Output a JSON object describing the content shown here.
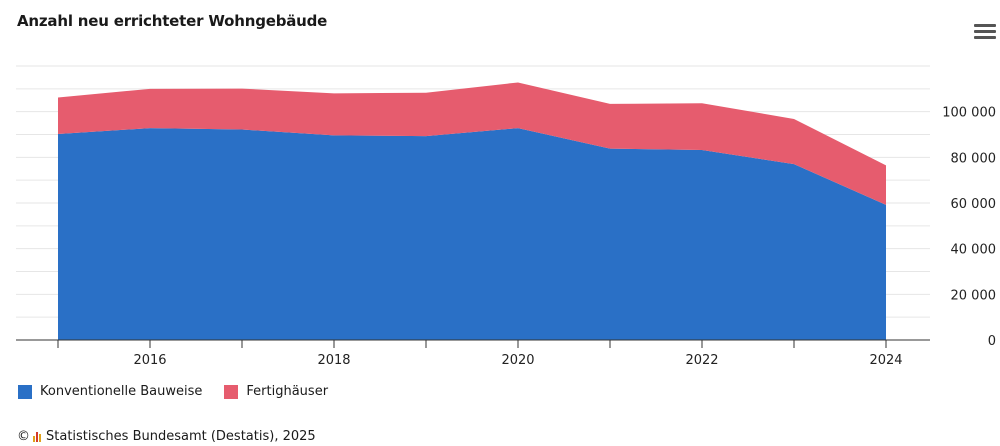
{
  "chart_data": {
    "type": "area",
    "stacked": true,
    "title": "Anzahl neu errichteter Wohngebäude",
    "x": [
      2015,
      2016,
      2017,
      2018,
      2019,
      2020,
      2021,
      2022,
      2023,
      2024
    ],
    "x_tick_labels": [
      "2016",
      "2018",
      "2020",
      "2022",
      "2024"
    ],
    "x_tick_values": [
      2016,
      2018,
      2020,
      2022,
      2024
    ],
    "y_tick_labels": [
      "0",
      "20 000",
      "40 000",
      "60 000",
      "80 000",
      "100 000"
    ],
    "y_tick_values": [
      0,
      20000,
      40000,
      60000,
      80000,
      100000
    ],
    "ylim": [
      0,
      120000
    ],
    "y_axis_position": "right",
    "grid": true,
    "legend_position": "bottom-left",
    "series": [
      {
        "name": "Konventionelle Bauweise",
        "color": "#2a70c6",
        "values": [
          90200,
          92800,
          92200,
          89600,
          89300,
          92800,
          83800,
          83200,
          77000,
          59200
        ]
      },
      {
        "name": "Fertighäuser",
        "color": "#e65c6e",
        "values": [
          16000,
          17200,
          17900,
          18400,
          19000,
          20000,
          19600,
          20500,
          19800,
          17300
        ]
      }
    ]
  },
  "header": {
    "menu_icon": "hamburger-menu-icon"
  },
  "footer": {
    "copyright": "©",
    "source": "Statistisches Bundesamt (Destatis), 2025"
  }
}
